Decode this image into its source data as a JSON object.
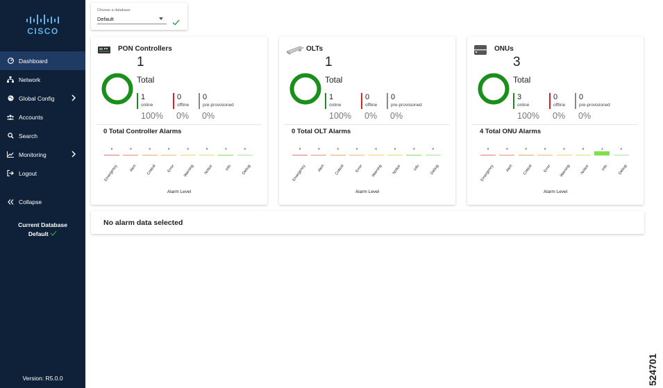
{
  "brand": {
    "name": "CISCO"
  },
  "sidebar": {
    "items": [
      {
        "label": "Dashboard",
        "icon": "dashboard-icon",
        "active": true
      },
      {
        "label": "Network",
        "icon": "network-icon"
      },
      {
        "label": "Global Config",
        "icon": "globe-icon",
        "submenu": true
      },
      {
        "label": "Accounts",
        "icon": "users-icon"
      },
      {
        "label": "Search",
        "icon": "search-icon"
      },
      {
        "label": "Monitoring",
        "icon": "chart-line-icon",
        "submenu": true
      },
      {
        "label": "Logout",
        "icon": "logout-icon"
      }
    ],
    "collapse_label": "Collapse",
    "current_db_label": "Current Database",
    "current_db_value": "Default",
    "version": "Version: R5.0.0"
  },
  "db_select": {
    "label": "Choose a database",
    "value": "Default"
  },
  "cards": [
    {
      "title": "PON Controllers",
      "icon": "pon-controller-icon",
      "total": "1",
      "total_label": "Total",
      "online": "1",
      "offline": "0",
      "preprov": "0",
      "online_label": "online",
      "offline_label": "offline",
      "preprov_label": "pre-provisioned",
      "online_pct": "100%",
      "offline_pct": "0%",
      "preprov_pct": "0%",
      "alarms_title": "0 Total Controller Alarms",
      "alarm_counts": [
        "0",
        "0",
        "0",
        "0",
        "0",
        "0",
        "0",
        "0"
      ],
      "alarm_values": [
        0,
        0,
        0,
        0,
        0,
        0,
        0,
        0
      ]
    },
    {
      "title": "OLTs",
      "icon": "olt-icon",
      "total": "1",
      "total_label": "Total",
      "online": "1",
      "offline": "0",
      "preprov": "0",
      "online_label": "online",
      "offline_label": "offline",
      "preprov_label": "pre-provisioned",
      "online_pct": "100%",
      "offline_pct": "0%",
      "preprov_pct": "0%",
      "alarms_title": "0 Total OLT Alarms",
      "alarm_counts": [
        "0",
        "0",
        "0",
        "0",
        "0",
        "0",
        "0",
        "0"
      ],
      "alarm_values": [
        0,
        0,
        0,
        0,
        0,
        0,
        0,
        0
      ]
    },
    {
      "title": "ONUs",
      "icon": "onu-icon",
      "total": "3",
      "total_label": "Total",
      "online": "3",
      "offline": "0",
      "preprov": "0",
      "online_label": "online",
      "offline_label": "offline",
      "preprov_label": "pre-provisioned",
      "online_pct": "100%",
      "offline_pct": "0%",
      "preprov_pct": "0%",
      "alarms_title": "4 Total ONU Alarms",
      "alarm_counts": [
        "0",
        "0",
        "0",
        "0",
        "0",
        "0",
        "4",
        "0"
      ],
      "alarm_values": [
        0,
        0,
        0,
        0,
        0,
        0,
        4,
        0
      ]
    }
  ],
  "alarm_levels": [
    "Emergency",
    "Alert",
    "Critical",
    "Error",
    "Warning",
    "Notice",
    "Info",
    "Debug"
  ],
  "alarm_colors": [
    "#e57373",
    "#ef8a7a",
    "#f2a35e",
    "#f2b66e",
    "#f2d36e",
    "#d8e06e",
    "#7ee04d",
    "#a9e6a0"
  ],
  "axis_label": "Alarm Level",
  "status_colors": {
    "online": "#1b8e1b",
    "offline": "#e02020",
    "preprov": "#888888"
  },
  "no_data": "No alarm data selected",
  "figure_number": "524701"
}
